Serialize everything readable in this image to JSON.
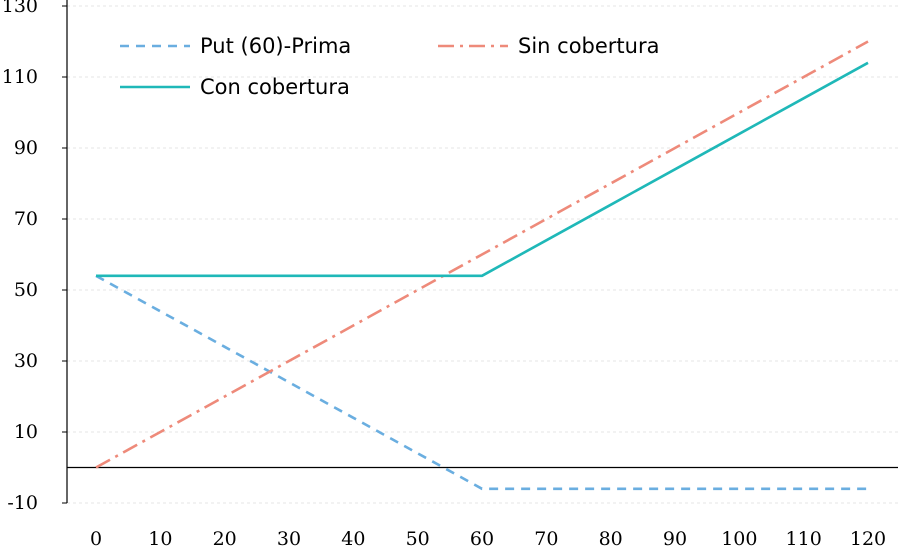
{
  "chart_data": {
    "type": "line",
    "title": "",
    "xlabel": "",
    "ylabel": "",
    "x": [
      0,
      10,
      20,
      30,
      40,
      50,
      60,
      70,
      80,
      90,
      100,
      110,
      120
    ],
    "x_tick_labels": [
      "0",
      "10",
      "20",
      "30",
      "40",
      "50",
      "60",
      "70",
      "80",
      "90",
      "100",
      "110",
      "120"
    ],
    "y_tick_labels": [
      "130",
      "110",
      "90",
      "70",
      "50",
      "30",
      "10",
      "-10"
    ],
    "y_ticks": [
      130,
      110,
      90,
      70,
      50,
      30,
      10,
      -10
    ],
    "xlim": [
      0,
      120
    ],
    "ylim": [
      -10,
      130
    ],
    "grid": "horizontal",
    "legend_position": "top-left",
    "series": [
      {
        "name": "Put (60)-Prima",
        "style": "dashed",
        "color": "#6aaee0",
        "values": [
          54,
          44,
          34,
          24,
          14,
          4,
          -6,
          -6,
          -6,
          -6,
          -6,
          -6,
          -6
        ]
      },
      {
        "name": "Sin cobertura",
        "style": "dash-dot",
        "color": "#ee8a7a",
        "values": [
          0,
          10,
          20,
          30,
          40,
          50,
          60,
          70,
          80,
          90,
          100,
          110,
          120
        ]
      },
      {
        "name": "Con cobertura",
        "style": "solid",
        "color": "#1fb8b8",
        "values": [
          54,
          54,
          54,
          54,
          54,
          54,
          54,
          64,
          74,
          84,
          94,
          104,
          114
        ]
      }
    ]
  }
}
